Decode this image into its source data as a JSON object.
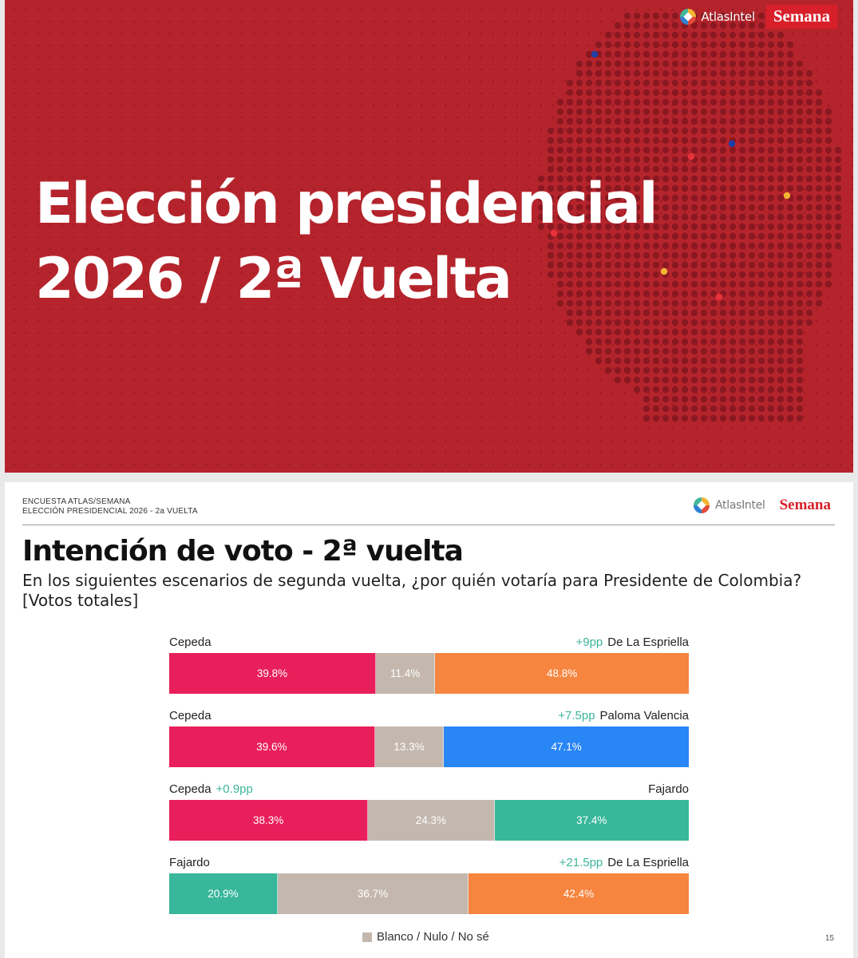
{
  "top_slide": {
    "title_line1": "Elección presidencial",
    "title_line2": "2026 / 2ª Vuelta",
    "logo_atlas": "AtlasIntel",
    "logo_semana": "Semana",
    "colors": {
      "background": "#b5242c",
      "dot": "#9c1c24",
      "dot_dark": "#8a1820"
    }
  },
  "header": {
    "line1": "ENCUESTA ATLAS/SEMANA",
    "line2": "ELECCIÓN PRESIDENCIAL 2026 - 2a VUELTA",
    "logo_atlas": "AtlasIntel",
    "logo_semana": "Semana"
  },
  "page_number": "15",
  "chart_data": {
    "type": "bar",
    "stacked": true,
    "orientation": "horizontal",
    "title": "Intención de voto - 2ª vuelta",
    "subtitle": "En los siguientes escenarios de segunda vuelta, ¿por quién votaría para Presidente de Colombia? [Votos totales]",
    "legend": {
      "label": "Blanco / Nulo / No sé",
      "position": "bottom"
    },
    "colors": {
      "Cepeda": "#e81f5a",
      "De La Espriella": "#f6853f",
      "Paloma Valencia": "#2986f5",
      "Fajardo": "#38b79a",
      "Blanco": "#c4b8ae"
    },
    "scenarios": [
      {
        "left_name": "Cepeda",
        "right_name": "De La Espriella",
        "lead_text": "+9pp",
        "lead_side": "right",
        "values": [
          39.8,
          11.4,
          48.8
        ],
        "labels": [
          "39.8%",
          "11.4%",
          "48.8%"
        ],
        "colors": [
          "#e81f5a",
          "#c4b8ae",
          "#f6853f"
        ]
      },
      {
        "left_name": "Cepeda",
        "right_name": "Paloma Valencia",
        "lead_text": "+7.5pp",
        "lead_side": "right",
        "values": [
          39.6,
          13.3,
          47.1
        ],
        "labels": [
          "39.6%",
          "13.3%",
          "47.1%"
        ],
        "colors": [
          "#e81f5a",
          "#c4b8ae",
          "#2986f5"
        ]
      },
      {
        "left_name": "Cepeda",
        "right_name": "Fajardo",
        "lead_text": "+0.9pp",
        "lead_side": "left",
        "values": [
          38.3,
          24.3,
          37.4
        ],
        "labels": [
          "38.3%",
          "24.3%",
          "37.4%"
        ],
        "colors": [
          "#e81f5a",
          "#c4b8ae",
          "#38b79a"
        ]
      },
      {
        "left_name": "Fajardo",
        "right_name": "De La Espriella",
        "lead_text": "+21.5pp",
        "lead_side": "right",
        "values": [
          20.9,
          36.7,
          42.4
        ],
        "labels": [
          "20.9%",
          "36.7%",
          "42.4%"
        ],
        "colors": [
          "#38b79a",
          "#c4b8ae",
          "#f6853f"
        ]
      }
    ]
  }
}
